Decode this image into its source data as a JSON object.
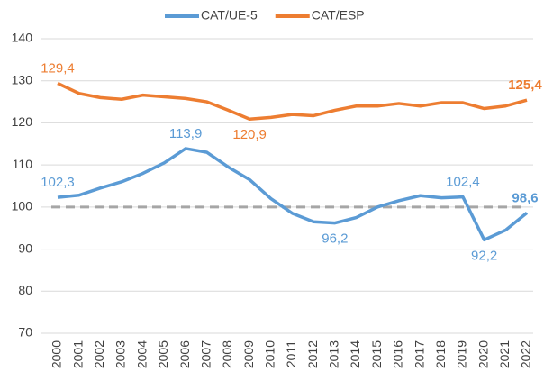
{
  "chart_data": {
    "type": "line",
    "categories": [
      "2000",
      "2001",
      "2002",
      "2003",
      "2004",
      "2005",
      "2006",
      "2007",
      "2008",
      "2009",
      "2010",
      "2011",
      "2012",
      "2013",
      "2014",
      "2015",
      "2016",
      "2017",
      "2018",
      "2019",
      "2020",
      "2021",
      "2022"
    ],
    "series": [
      {
        "name": "CAT/UE-5",
        "color": "#5b9bd5",
        "values": [
          102.3,
          102.8,
          104.5,
          106,
          108,
          110.5,
          113.9,
          113,
          109.5,
          106.5,
          102,
          98.5,
          96.5,
          96.2,
          97.5,
          100,
          101.5,
          102.7,
          102.2,
          102.4,
          92.2,
          94.5,
          98.6
        ],
        "value_labels": [
          "102,3",
          null,
          null,
          null,
          null,
          null,
          "113,9",
          null,
          null,
          null,
          null,
          null,
          null,
          "96,2",
          null,
          null,
          null,
          null,
          null,
          "102,4",
          "92,2",
          null,
          "98,6"
        ]
      },
      {
        "name": "CAT/ESP",
        "color": "#ed7d31",
        "values": [
          129.4,
          127,
          126,
          125.6,
          126.6,
          126.2,
          125.8,
          125,
          123,
          120.9,
          121.3,
          122,
          121.7,
          123,
          124,
          124,
          124.6,
          124,
          124.8,
          124.8,
          123.4,
          124,
          125.4
        ],
        "value_labels": [
          "129,4",
          null,
          null,
          null,
          null,
          null,
          null,
          null,
          null,
          "120,9",
          null,
          null,
          null,
          null,
          null,
          null,
          null,
          null,
          null,
          null,
          null,
          null,
          "125,4"
        ]
      }
    ],
    "hline": 100,
    "ylim": [
      70,
      140
    ],
    "yticks": [
      70,
      80,
      90,
      100,
      110,
      120,
      130,
      140
    ],
    "grid": true,
    "legend": "top"
  }
}
